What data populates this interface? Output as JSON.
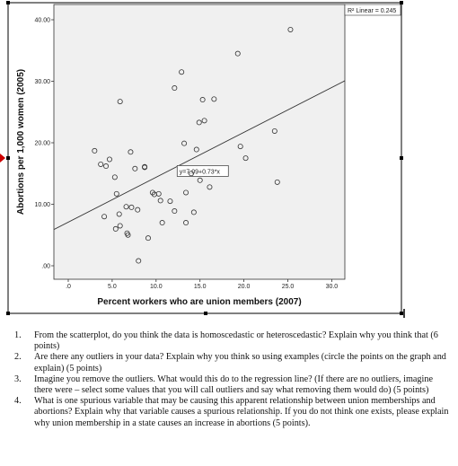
{
  "chart_data": {
    "type": "scatter",
    "xlabel": "Percent workers who are union members (2007)",
    "ylabel": "Abortions per 1,000 women (2005)",
    "x_ticks": [
      ".0",
      "5.0",
      "10.0",
      "15.0",
      "20.0",
      "25.0",
      "30.0"
    ],
    "y_ticks": [
      ".00",
      "10.00",
      "20.00",
      "30.00",
      "40.00"
    ],
    "xlim": [
      0,
      30
    ],
    "ylim": [
      0,
      40
    ],
    "fit_line": {
      "label": "y=7.09+0.73*x",
      "intercept": 7.09,
      "slope": 0.73
    },
    "r2_label": "R² Linear = 0.245",
    "points": [
      {
        "x": 3.0,
        "y": 18.7
      },
      {
        "x": 3.7,
        "y": 16.5
      },
      {
        "x": 4.3,
        "y": 16.2
      },
      {
        "x": 4.7,
        "y": 17.3
      },
      {
        "x": 4.1,
        "y": 8.0
      },
      {
        "x": 5.3,
        "y": 14.4
      },
      {
        "x": 5.5,
        "y": 11.7
      },
      {
        "x": 5.9,
        "y": 26.7
      },
      {
        "x": 5.8,
        "y": 8.4
      },
      {
        "x": 5.4,
        "y": 6.0
      },
      {
        "x": 5.9,
        "y": 6.5
      },
      {
        "x": 6.6,
        "y": 9.6
      },
      {
        "x": 6.7,
        "y": 5.3
      },
      {
        "x": 6.8,
        "y": 5.0
      },
      {
        "x": 7.1,
        "y": 18.5
      },
      {
        "x": 7.2,
        "y": 9.5
      },
      {
        "x": 7.6,
        "y": 15.8
      },
      {
        "x": 7.9,
        "y": 9.1
      },
      {
        "x": 8.0,
        "y": 0.8
      },
      {
        "x": 8.7,
        "y": 16.1
      },
      {
        "x": 8.7,
        "y": 16.0
      },
      {
        "x": 9.1,
        "y": 4.5
      },
      {
        "x": 9.6,
        "y": 11.9
      },
      {
        "x": 9.8,
        "y": 11.6
      },
      {
        "x": 10.3,
        "y": 11.7
      },
      {
        "x": 10.5,
        "y": 10.6
      },
      {
        "x": 10.7,
        "y": 7.0
      },
      {
        "x": 11.6,
        "y": 10.5
      },
      {
        "x": 12.1,
        "y": 28.9
      },
      {
        "x": 12.1,
        "y": 8.9
      },
      {
        "x": 12.9,
        "y": 31.5
      },
      {
        "x": 13.2,
        "y": 19.9
      },
      {
        "x": 13.4,
        "y": 7.0
      },
      {
        "x": 13.4,
        "y": 11.9
      },
      {
        "x": 14.0,
        "y": 15.0
      },
      {
        "x": 14.3,
        "y": 8.7
      },
      {
        "x": 14.6,
        "y": 18.9
      },
      {
        "x": 14.9,
        "y": 23.3
      },
      {
        "x": 15.0,
        "y": 13.9
      },
      {
        "x": 15.3,
        "y": 27.0
      },
      {
        "x": 15.5,
        "y": 23.6
      },
      {
        "x": 16.1,
        "y": 12.8
      },
      {
        "x": 16.6,
        "y": 27.1
      },
      {
        "x": 19.3,
        "y": 34.5
      },
      {
        "x": 19.6,
        "y": 19.4
      },
      {
        "x": 20.2,
        "y": 17.5
      },
      {
        "x": 23.5,
        "y": 21.9
      },
      {
        "x": 23.8,
        "y": 13.6
      },
      {
        "x": 25.3,
        "y": 38.4
      }
    ]
  },
  "questions": [
    {
      "number": "1.",
      "text": "From the scatterplot, do you think the data is homoscedastic or heteroscedastic? Explain why you think that (6 points)"
    },
    {
      "number": "2.",
      "text": "Are there any outliers in your data? Explain why you think so using examples (circle the points on the graph and explain) (5 points)"
    },
    {
      "number": "3.",
      "text": "Imagine you remove the outliers. What would this do to the regression line? (If there are no outliers, imagine there were – select some values that you will call outliers and say what removing them would do) (5 points)"
    },
    {
      "number": "4.",
      "text": "What is one spurious variable that may be causing this apparent relationship between union memberships and abortions? Explain why that variable causes a spurious relationship. If you do not think one exists, please explain why union membership in a state causes an increase in abortions (5 points)."
    }
  ]
}
